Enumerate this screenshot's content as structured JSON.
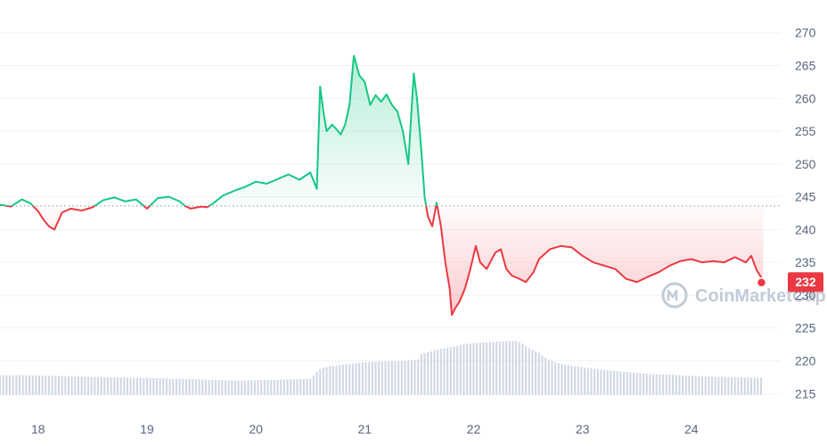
{
  "chart_data": {
    "type": "line",
    "title": "",
    "xlabel": "",
    "ylabel": "",
    "ylim": [
      213,
      272
    ],
    "xlim": [
      17.65,
      24.82
    ],
    "yticks": [
      270,
      265,
      260,
      255,
      250,
      245,
      240,
      235,
      230,
      225,
      220,
      215
    ],
    "xticks": [
      18,
      19,
      20,
      21,
      22,
      23,
      24
    ],
    "xtick_labels": [
      "18",
      "19",
      "20",
      "21",
      "22",
      "23",
      "24"
    ],
    "baseline": 243.6,
    "current_price": 232,
    "current_price_label": "232",
    "grid": true,
    "colors": {
      "up": "#16c784",
      "down": "#ea3943",
      "volume": "#cfd6e4",
      "grid": "#eff2f5",
      "tick": "#58667e"
    },
    "series": [
      {
        "x": [
          17.65,
          17.75,
          17.85,
          17.93,
          18.0,
          18.05,
          18.1,
          18.15,
          18.22,
          18.3,
          18.4,
          18.5,
          18.6,
          18.7,
          18.8,
          18.9,
          18.95,
          19.0,
          19.1,
          19.2,
          19.3,
          19.35,
          19.4,
          19.5,
          19.55,
          19.6,
          19.7,
          19.8,
          19.9,
          20.0,
          20.1,
          20.2,
          20.3,
          20.4,
          20.5,
          20.56,
          20.59,
          20.62,
          20.65,
          20.7,
          20.74,
          20.78,
          20.82,
          20.86,
          20.9,
          20.95,
          21.0,
          21.05,
          21.1,
          21.15,
          21.2,
          21.25,
          21.3,
          21.35,
          21.4,
          21.45,
          21.48,
          21.52,
          21.55,
          21.58,
          21.62,
          21.66,
          21.7,
          21.74,
          21.78,
          21.8,
          21.83,
          21.87,
          21.92,
          21.97,
          22.02,
          22.06,
          22.12,
          22.2,
          22.25,
          22.3,
          22.35,
          22.42,
          22.48,
          22.55,
          22.6,
          22.7,
          22.8,
          22.9,
          23.0,
          23.1,
          23.2,
          23.3,
          23.4,
          23.5,
          23.6,
          23.7,
          23.8,
          23.9,
          24.0,
          24.1,
          24.2,
          24.3,
          24.4,
          24.5,
          24.55,
          24.6,
          24.66
        ],
        "y": [
          243.8,
          243.5,
          244.6,
          244.0,
          242.8,
          241.5,
          240.5,
          240.0,
          242.6,
          243.2,
          242.9,
          243.4,
          244.5,
          244.9,
          244.3,
          244.6,
          243.9,
          243.2,
          244.8,
          245.0,
          244.3,
          243.6,
          243.2,
          243.5,
          243.4,
          243.9,
          245.2,
          245.9,
          246.5,
          247.3,
          247.0,
          247.7,
          248.4,
          247.6,
          248.7,
          246.2,
          261.8,
          258.0,
          255.0,
          256.0,
          255.3,
          254.5,
          256.0,
          259.0,
          266.5,
          263.5,
          262.5,
          259.0,
          260.5,
          259.5,
          260.6,
          259.0,
          258.0,
          255.0,
          250.0,
          263.8,
          260.0,
          252.0,
          245.0,
          242.0,
          240.5,
          244.1,
          240.5,
          235.0,
          231.0,
          227.0,
          228.0,
          229.0,
          231.0,
          234.0,
          237.5,
          235.0,
          234.0,
          236.5,
          237.0,
          234.0,
          233.0,
          232.5,
          232.0,
          233.5,
          235.5,
          237.0,
          237.5,
          237.3,
          236.0,
          235.0,
          234.5,
          234.0,
          232.5,
          232.0,
          232.8,
          233.5,
          234.5,
          235.2,
          235.5,
          235.0,
          235.2,
          235.0,
          235.8,
          235.0,
          236.0,
          233.8,
          232.2
        ]
      }
    ],
    "volume": {
      "x": [
        17.65,
        17.9,
        18.2,
        18.6,
        19.0,
        19.4,
        19.8,
        20.2,
        20.5,
        20.58,
        20.62,
        20.7,
        20.8,
        20.9,
        21.0,
        21.2,
        21.4,
        21.5,
        21.52,
        21.6,
        21.7,
        21.8,
        21.9,
        22.0,
        22.1,
        22.2,
        22.3,
        22.4,
        22.45,
        22.5,
        22.55,
        22.6,
        22.65,
        22.7,
        22.8,
        23.0,
        23.2,
        23.4,
        23.6,
        23.8,
        24.0,
        24.2,
        24.4,
        24.6,
        24.66
      ],
      "y": [
        217.8,
        217.8,
        217.7,
        217.5,
        217.4,
        217.2,
        217.0,
        217.1,
        217.3,
        218.7,
        219.0,
        219.2,
        219.4,
        219.6,
        219.8,
        219.9,
        220.0,
        220.2,
        221.0,
        221.4,
        221.8,
        222.1,
        222.5,
        222.7,
        222.8,
        222.9,
        223.0,
        223.0,
        222.6,
        222.0,
        221.6,
        221.2,
        220.6,
        220.1,
        219.5,
        219.0,
        218.6,
        218.3,
        218.0,
        217.9,
        217.7,
        217.6,
        217.5,
        217.4,
        217.4
      ],
      "base": 214.8
    }
  },
  "watermark": {
    "text": "CoinMarketCap",
    "logo": "coinmarketcap-logo-icon"
  }
}
